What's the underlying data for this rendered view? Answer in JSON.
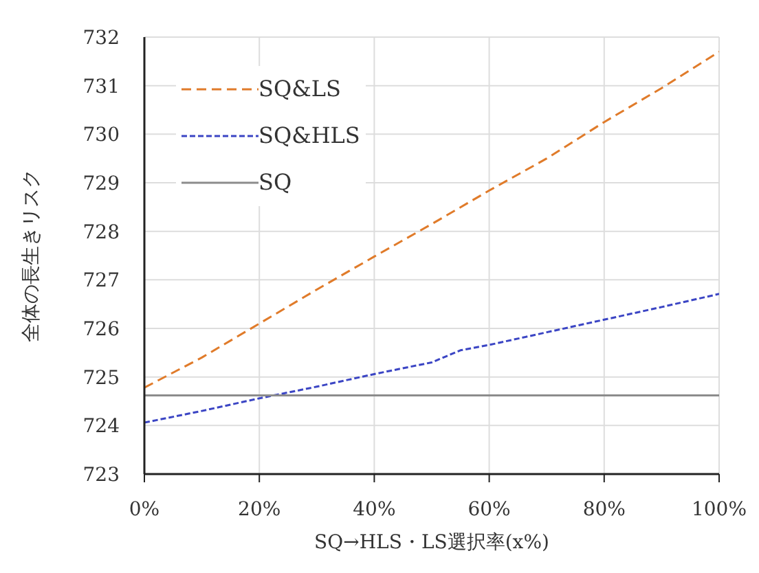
{
  "chart_data": {
    "type": "line",
    "xlabel": "SQ→HLS・LS選択率(x%)",
    "ylabel": "全体の長生きリスク",
    "xlim": [
      0,
      100
    ],
    "xticks": [
      {
        "value": 0,
        "label": "0%"
      },
      {
        "value": 20,
        "label": "20%"
      },
      {
        "value": 40,
        "label": "40%"
      },
      {
        "value": 60,
        "label": "60%"
      },
      {
        "value": 80,
        "label": "80%"
      },
      {
        "value": 100,
        "label": "100%"
      }
    ],
    "ylim": [
      723,
      732
    ],
    "yticks": [
      723,
      724,
      725,
      726,
      727,
      728,
      729,
      730,
      731,
      732
    ],
    "grid": true,
    "legend": "top left",
    "marker": "none",
    "series": [
      {
        "name": "SQ&LS",
        "color": "#e07b2a",
        "line_style": "dashed",
        "x": [
          0,
          10,
          20,
          30,
          40,
          50,
          60,
          70,
          80,
          90,
          100
        ],
        "values": [
          724.78,
          725.4,
          726.1,
          726.8,
          727.48,
          728.15,
          728.84,
          729.5,
          730.25,
          730.95,
          731.7
        ]
      },
      {
        "name": "SQ&HLS",
        "color": "#3b45c4",
        "line_style": "dotted",
        "x": [
          0,
          10,
          20,
          30,
          40,
          50,
          55,
          60,
          70,
          80,
          90,
          100
        ],
        "values": [
          724.06,
          724.3,
          724.56,
          724.8,
          725.06,
          725.3,
          725.55,
          725.66,
          725.92,
          726.18,
          726.44,
          726.71
        ]
      },
      {
        "name": "SQ",
        "color": "#8c8c8c",
        "line_style": "solid",
        "x": [
          0,
          100
        ],
        "values": [
          724.62,
          724.62
        ]
      }
    ]
  }
}
